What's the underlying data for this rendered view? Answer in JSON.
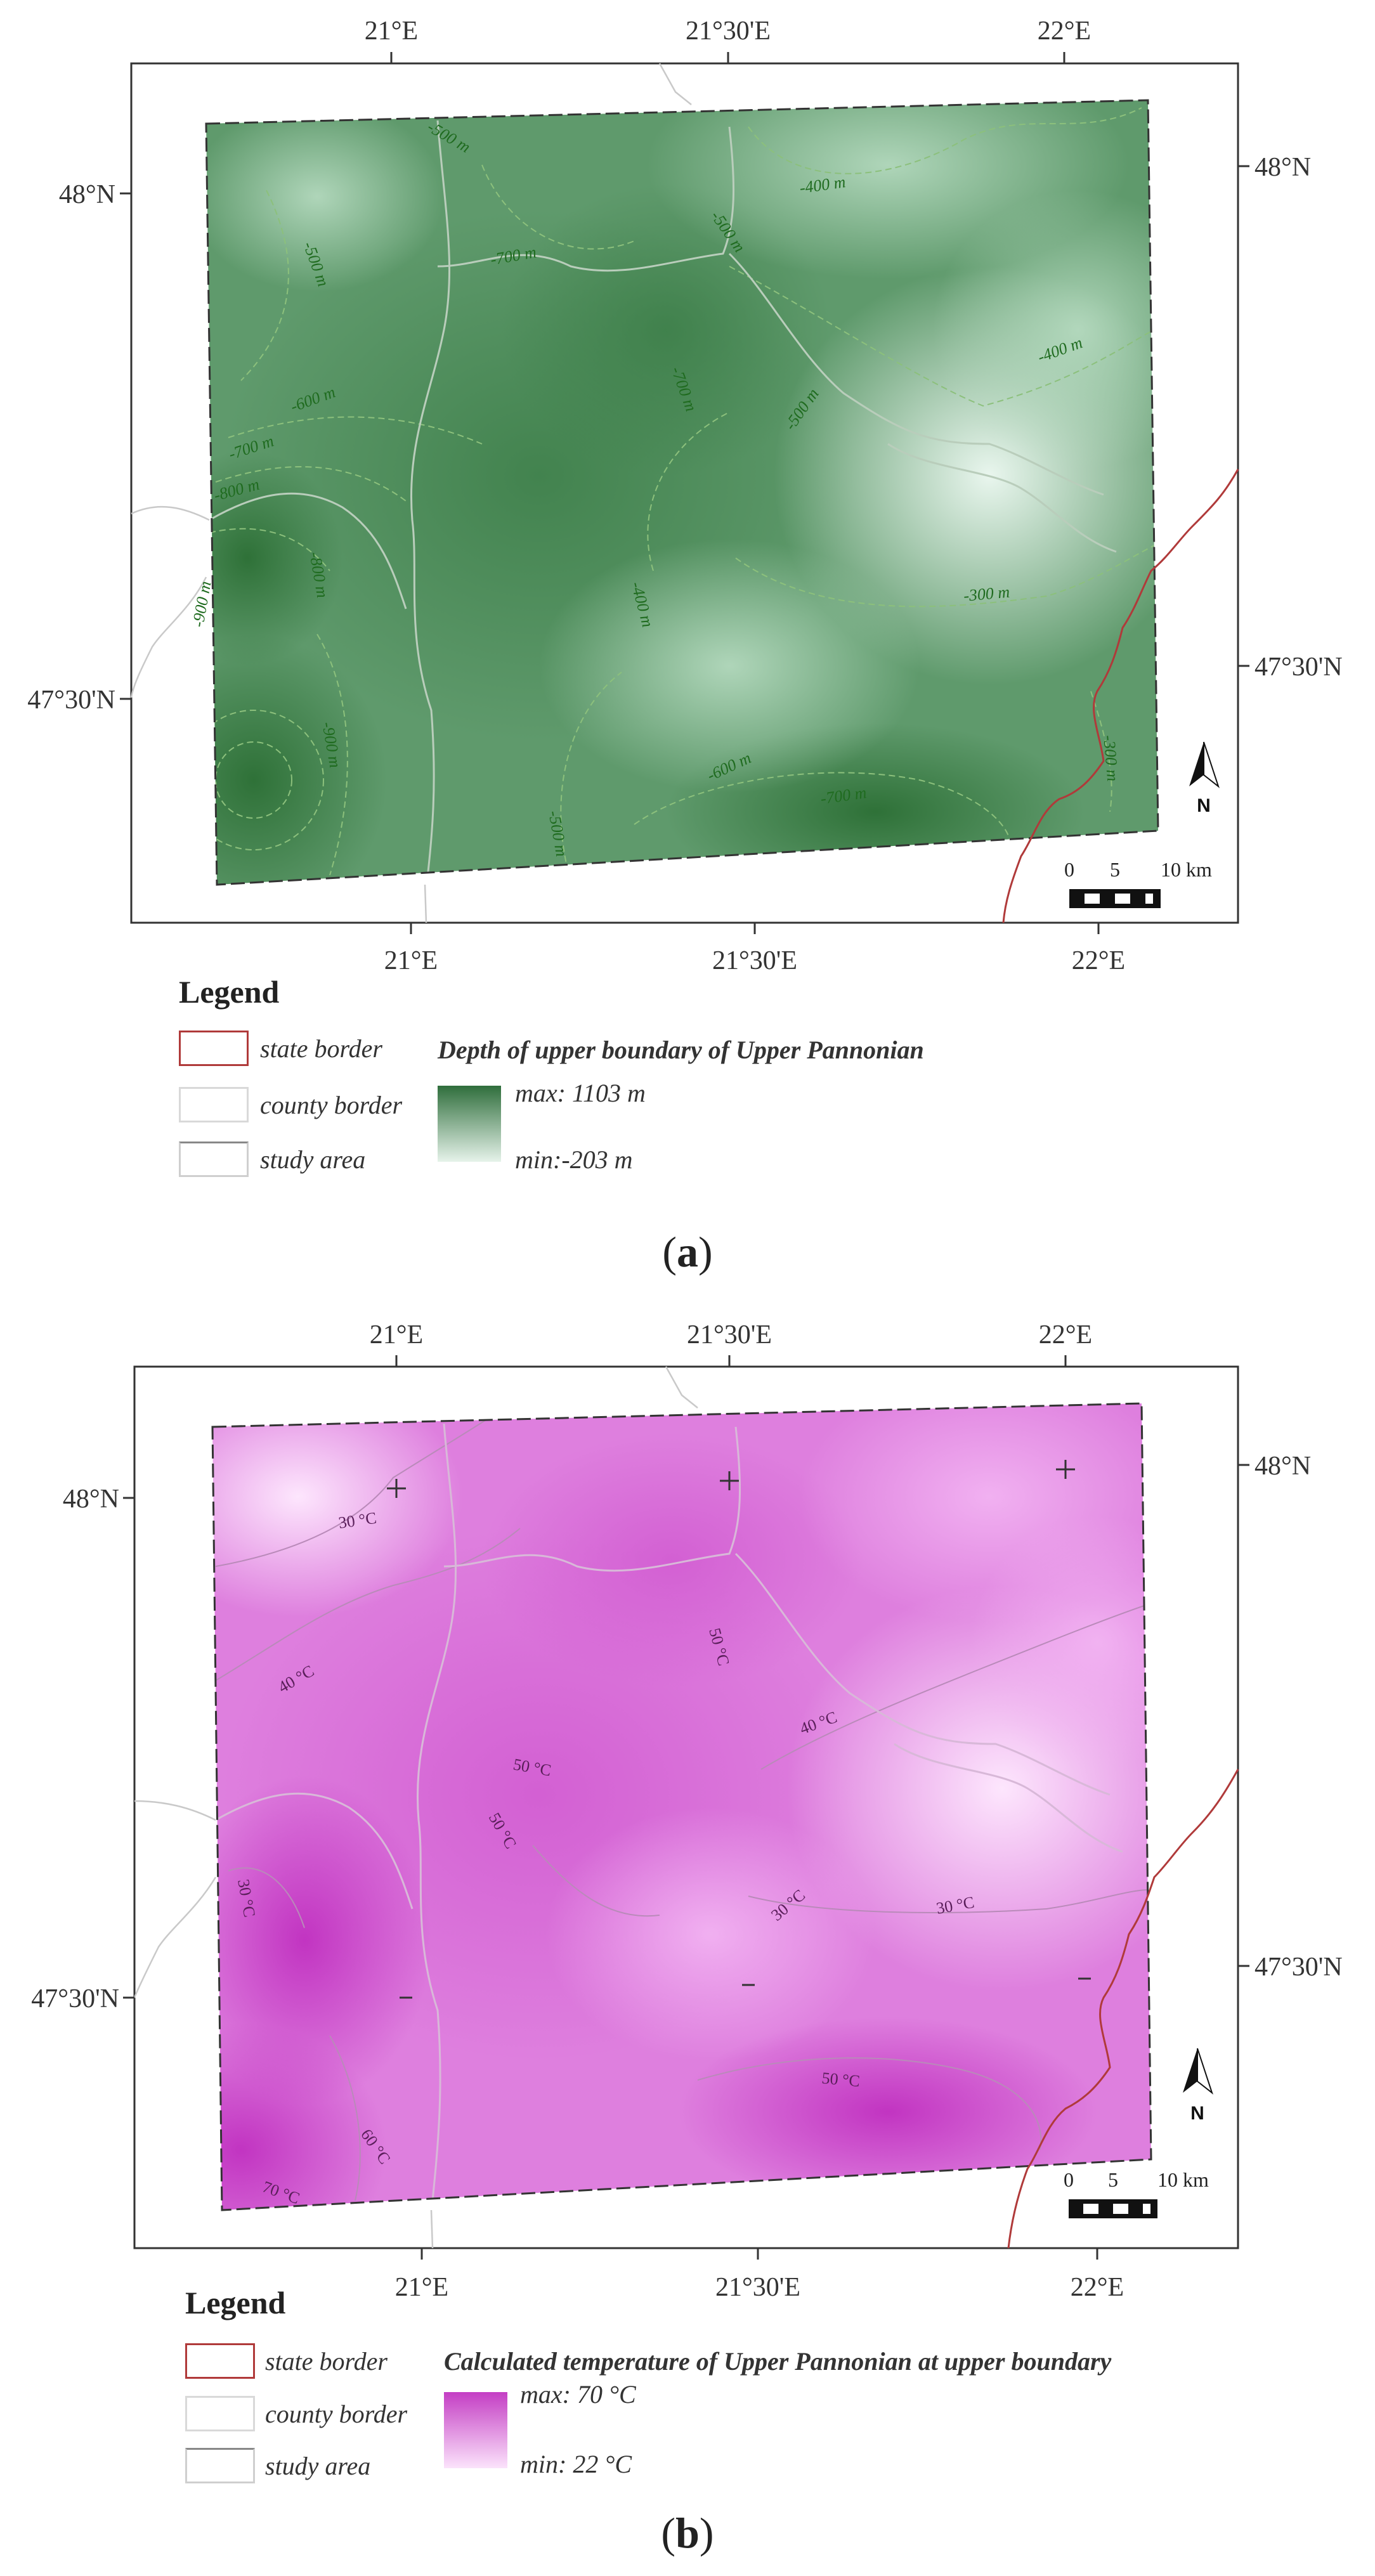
{
  "panel_a": {
    "top_lon_ticks": [
      "21°E",
      "21°30'E",
      "22°E"
    ],
    "bottom_lon_ticks": [
      "21°E",
      "21°30'E",
      "22°E"
    ],
    "left_lat_ticks": [
      "48°N",
      "47°30'N"
    ],
    "right_lat_ticks": [
      "48°N",
      "47°30'N"
    ],
    "contour_labels": [
      "-500 m",
      "-400 m",
      "-500 m",
      "-500 m",
      "-700 m",
      "-600 m",
      "-700 m",
      "-500 m",
      "-400 m",
      "-700 m",
      "-800 m",
      "-900 m",
      "-800 m",
      "-400 m",
      "-300 m",
      "-900 m",
      "-600 m",
      "-700 m",
      "-500 m",
      "-300 m"
    ],
    "scale_labels": [
      "0",
      "5",
      "10 km"
    ],
    "north_label": "N",
    "legend": {
      "title": "Legend",
      "state_border": "state border",
      "county_border": "county border",
      "study_area": "study area",
      "ramp_title": "Depth of upper boundary of Upper Pannonian",
      "max_label": "max:  1103 m",
      "min_label": "min:-203 m"
    },
    "colors": {
      "ramp_max": "#2f6e3c",
      "ramp_min": "#e6f3ea",
      "state_border": "#b03a3a",
      "contour": "#79b26a"
    },
    "caption_letter": "a"
  },
  "panel_b": {
    "top_lon_ticks": [
      "21°E",
      "21°30'E",
      "22°E"
    ],
    "bottom_lon_ticks": [
      "21°E",
      "21°30'E",
      "22°E"
    ],
    "left_lat_ticks": [
      "48°N",
      "47°30'N"
    ],
    "right_lat_ticks": [
      "48°N",
      "47°30'N"
    ],
    "contour_labels": [
      "30 °C",
      "40 °C",
      "50 °C",
      "40 °C",
      "50 °C",
      "50 °C",
      "30 °C",
      "30 °C",
      "30 °C",
      "50 °C",
      "60 °C",
      "70 °C"
    ],
    "scale_labels": [
      "0",
      "5",
      "10 km"
    ],
    "north_label": "N",
    "legend": {
      "title": "Legend",
      "state_border": "state border",
      "county_border": "county border",
      "study_area": "study area",
      "ramp_title": "Calculated temperature of Upper Pannonian at upper boundary",
      "max_label": "max: 70 °C",
      "min_label": "min: 22 °C"
    },
    "colors": {
      "ramp_max": "#c43ec4",
      "ramp_min": "#fbe3fb",
      "state_border": "#b03a3a",
      "contour": "#a979a9"
    },
    "caption_letter": "b"
  }
}
